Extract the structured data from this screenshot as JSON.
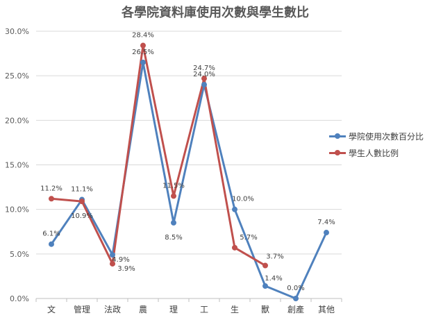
{
  "chart_data": {
    "type": "line",
    "title": "各學院資料庫使用次數與學生數比",
    "categories": [
      "文",
      "管理",
      "法政",
      "農",
      "理",
      "工",
      "生",
      "獸",
      "創產",
      "其他"
    ],
    "ylim": [
      0,
      30
    ],
    "yticks": [
      "0.0%",
      "5.0%",
      "10.0%",
      "15.0%",
      "20.0%",
      "25.0%",
      "30.0%"
    ],
    "grid": true,
    "legend_position": "right",
    "series": [
      {
        "name": "學院使用次數百分比",
        "color": "#4F81BD",
        "values": [
          6.1,
          11.1,
          4.9,
          26.5,
          8.5,
          24.0,
          10.0,
          1.4,
          0.0,
          7.4
        ],
        "labels": [
          "6.1%",
          "11.1%",
          "4.9%",
          "26.5%",
          "8.5%",
          "24.0%",
          "10.0%",
          "1.4%",
          "0.0%",
          "7.4%"
        ]
      },
      {
        "name": "學生人數比例",
        "color": "#C0504D",
        "values": [
          11.2,
          10.9,
          3.9,
          28.4,
          11.5,
          24.7,
          5.7,
          3.7,
          null,
          null
        ],
        "labels": [
          "11.2%",
          "10.9%",
          "3.9%",
          "28.4%",
          "11.5%",
          "24.7%",
          "5.7%",
          "3.7%",
          null,
          null
        ]
      }
    ]
  }
}
